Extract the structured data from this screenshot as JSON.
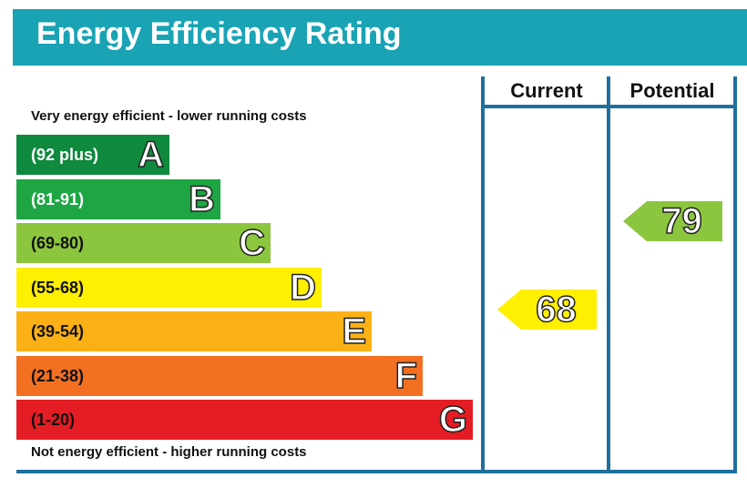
{
  "title": "Energy Efficiency Rating",
  "colors": {
    "header": "#1aa3b5",
    "frame": "#1f6f9c"
  },
  "columns": {
    "current": "Current",
    "potential": "Potential"
  },
  "top_note": "Very energy efficient - lower running costs",
  "bottom_note": "Not energy efficient - higher running costs",
  "chart_data": {
    "type": "bar",
    "title": "Energy Efficiency Rating",
    "categories": [
      "A",
      "B",
      "C",
      "D",
      "E",
      "F",
      "G"
    ],
    "bands": [
      {
        "letter": "A",
        "range": "(92 plus)",
        "color": "#0f8a3e",
        "text_color": "#ffffff"
      },
      {
        "letter": "B",
        "range": "(81-91)",
        "color": "#1ea544",
        "text_color": "#ffffff"
      },
      {
        "letter": "C",
        "range": "(69-80)",
        "color": "#8cc63e",
        "text_color": "#111111"
      },
      {
        "letter": "D",
        "range": "(55-68)",
        "color": "#ffef00",
        "text_color": "#111111"
      },
      {
        "letter": "E",
        "range": "(39-54)",
        "color": "#fbb116",
        "text_color": "#111111"
      },
      {
        "letter": "F",
        "range": "(21-38)",
        "color": "#f36f21",
        "text_color": "#111111"
      },
      {
        "letter": "G",
        "range": "(1-20)",
        "color": "#e31d23",
        "text_color": "#111111"
      }
    ],
    "current": {
      "value": 68,
      "band": "D",
      "color": "#ffef00"
    },
    "potential": {
      "value": 79,
      "band": "C",
      "color": "#8cc63e"
    }
  }
}
